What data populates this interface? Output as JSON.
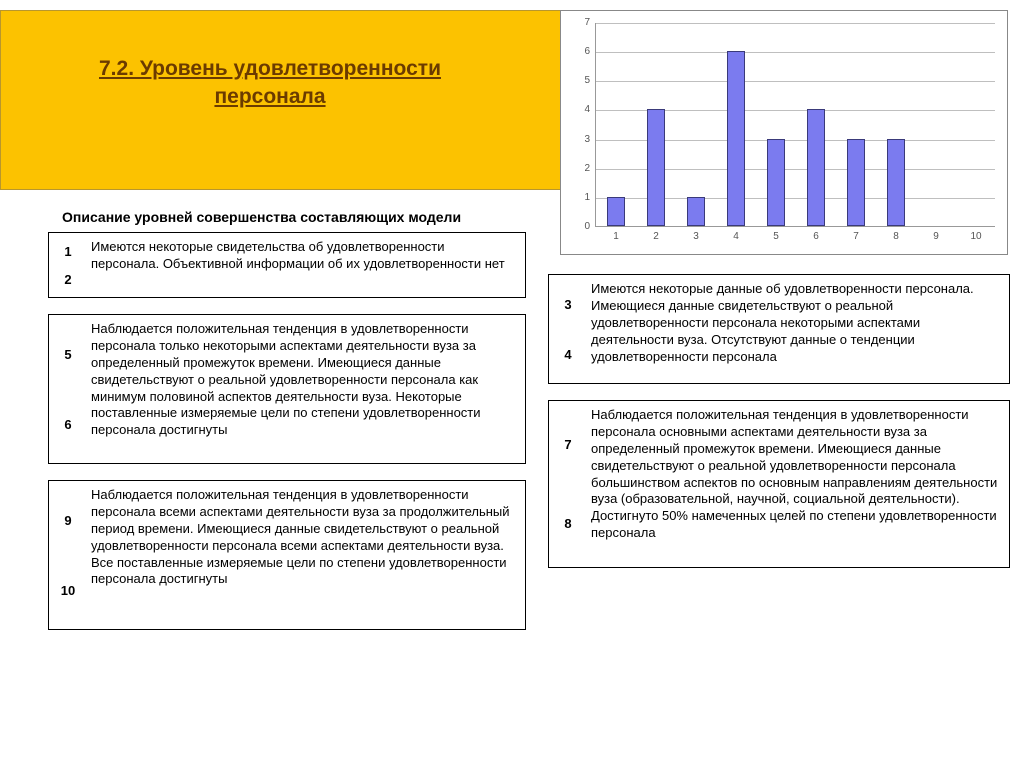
{
  "banner": {
    "bg_color": "#fcc200",
    "border_color": "#b8962d",
    "title": "7.2. Уровень удовлетворенности персонала",
    "title_color": "#6b3b00",
    "title_fontsize": 21
  },
  "subtitle": {
    "text": "Описание уровней совершенства составляющих модели",
    "fontsize": 14
  },
  "chart": {
    "type": "bar",
    "categories": [
      "1",
      "2",
      "3",
      "4",
      "5",
      "6",
      "7",
      "8",
      "9",
      "10"
    ],
    "values": [
      1,
      4,
      1,
      6,
      3,
      4,
      3,
      3,
      0,
      0
    ],
    "bar_color": "#7b7bef",
    "bar_border": "#3a3a7a",
    "ylim": [
      0,
      7
    ],
    "ytick_step": 1,
    "grid_color": "#bfbfbf",
    "background_color": "#ffffff",
    "axis_label_fontsize": 10,
    "axis_label_color": "#555555",
    "bar_width_ratio": 0.45
  },
  "boxes": {
    "b12": {
      "nums": [
        "1",
        "2"
      ],
      "text": "Имеются некоторые свидетельства об удовлетворенности персонала. Объективной информации об их удовлетворенности нет"
    },
    "b56": {
      "nums": [
        "5",
        "6"
      ],
      "text": "Наблюдается положительная тенденция в удовлетворенности персонала только некоторыми аспектами деятельности вуза за определенный промежуток времени. Имеющиеся данные свидетельствуют о реальной удовлетворенности персонала как минимум половиной аспектов деятельности вуза. Некоторые поставленные измеряемые цели по степени удовлетворенности персонала достигнуты"
    },
    "b910": {
      "nums": [
        "9",
        "10"
      ],
      "text": "Наблюдается положительная тенденция в удовлетворенности персонала всеми аспектами деятельности вуза за продолжительный период времени. Имеющиеся данные свидетельствуют о реальной удовлетворенности персонала всеми аспектами деятельности вуза. Все поставленные измеряемые цели по степени удовлетворенности персонала достигнуты"
    },
    "b34": {
      "nums": [
        "3",
        "4"
      ],
      "text": "Имеются некоторые данные об удовлетворенности персонала. Имеющиеся данные свидетельствуют о реальной удовлетворенности персонала некоторыми аспектами деятельности вуза. Отсутствуют данные о тенденции удовлетворенности персонала"
    },
    "b78": {
      "nums": [
        "7",
        "8"
      ],
      "text": "Наблюдается положительная тенденция в удовлетворенности персонала основными аспектами деятельности вуза за определенный промежуток времени. Имеющиеся данные свидетельствуют о реальной удовлетворенности персонала большинством аспектов по основным направлениям деятельности вуза (образовательной, научной, социальной деятельности). Достигнуто 50% намеченных целей по степени удовлетворенности персонала"
    }
  },
  "text_fontsize": 13
}
